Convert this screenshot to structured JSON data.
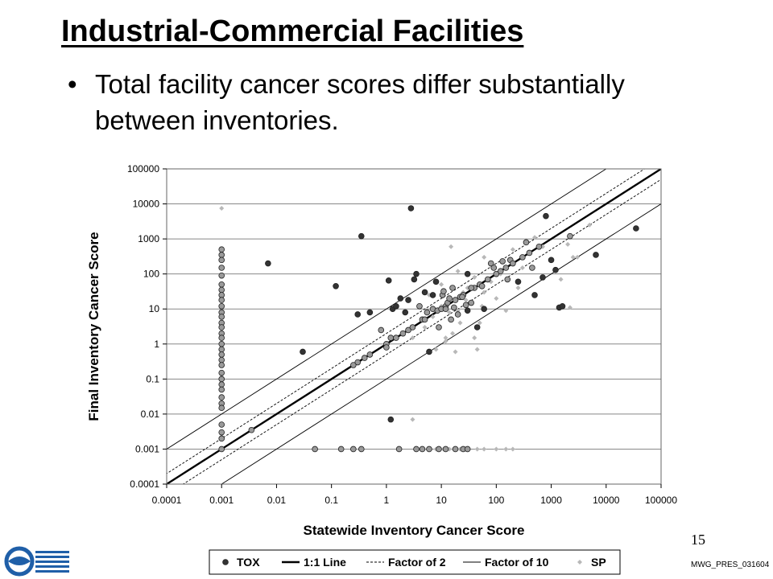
{
  "slide": {
    "title": "Industrial-Commercial Facilities",
    "bullet": "Total facility cancer scores differ substantially between inventories.",
    "page_number": "15",
    "slide_id": "MWG_PRES_031604"
  },
  "chart_data": {
    "type": "scatter",
    "xlabel": "Statewide Inventory Cancer Score",
    "ylabel": "Final Inventory Cancer Score",
    "x_scale": "log",
    "y_scale": "log",
    "xlim": [
      0.0001,
      100000
    ],
    "ylim": [
      0.0001,
      100000
    ],
    "x_ticks": [
      "0.0001",
      "0.001",
      "0.01",
      "0.1",
      "1",
      "10",
      "100",
      "1000",
      "10000",
      "100000"
    ],
    "y_ticks": [
      "100000",
      "10000",
      "1000",
      "100",
      "10",
      "1",
      "0.1",
      "0.01",
      "0.001",
      "0.0001"
    ],
    "grid": "horizontal",
    "legend_position": "bottom",
    "legend": [
      {
        "label": "TOX",
        "marker": "dark-dot"
      },
      {
        "label": "1:1 Line",
        "marker": "thick-line"
      },
      {
        "label": "Factor of 2",
        "marker": "dashed-line"
      },
      {
        "label": "Factor of 10",
        "marker": "thin-line"
      },
      {
        "label": "SP",
        "marker": "light-diamond"
      }
    ],
    "colors": {
      "tox": "#333333",
      "tox_overlap": "#9a9a9a",
      "sp": "#b8b8b8",
      "lines": "#000000",
      "grid": "#888888"
    },
    "reference_lines": [
      {
        "name": "1:1 Line",
        "factor": 1
      },
      {
        "name": "Factor of 2",
        "factor": 2
      },
      {
        "name": "Factor of 2",
        "factor": 0.5
      },
      {
        "name": "Factor of 10",
        "factor": 10
      },
      {
        "name": "Factor of 10",
        "factor": 0.1
      }
    ],
    "series": [
      {
        "name": "TOX",
        "points": [
          [
            0.001,
            500
          ],
          [
            0.001,
            350
          ],
          [
            0.001,
            250
          ],
          [
            0.001,
            150
          ],
          [
            0.001,
            90
          ],
          [
            0.001,
            50
          ],
          [
            0.001,
            35
          ],
          [
            0.001,
            25
          ],
          [
            0.001,
            18
          ],
          [
            0.001,
            12
          ],
          [
            0.001,
            8
          ],
          [
            0.001,
            6
          ],
          [
            0.001,
            4
          ],
          [
            0.001,
            3
          ],
          [
            0.001,
            2
          ],
          [
            0.001,
            1.5
          ],
          [
            0.001,
            1
          ],
          [
            0.001,
            0.7
          ],
          [
            0.001,
            0.5
          ],
          [
            0.001,
            0.35
          ],
          [
            0.001,
            0.25
          ],
          [
            0.001,
            0.15
          ],
          [
            0.001,
            0.1
          ],
          [
            0.001,
            0.07
          ],
          [
            0.001,
            0.05
          ],
          [
            0.001,
            0.03
          ],
          [
            0.001,
            0.02
          ],
          [
            0.001,
            0.015
          ],
          [
            0.001,
            0.005
          ],
          [
            0.001,
            0.003
          ],
          [
            0.001,
            0.002
          ],
          [
            0.001,
            0.001
          ],
          [
            0.0035,
            0.0035
          ],
          [
            0.007,
            200
          ],
          [
            0.03,
            0.6
          ],
          [
            0.12,
            45
          ],
          [
            0.35,
            1200
          ],
          [
            2.8,
            7500
          ],
          [
            0.3,
            0.3
          ],
          [
            0.25,
            0.25
          ],
          [
            0.5,
            0.5
          ],
          [
            0.4,
            0.4
          ],
          [
            0.3,
            7
          ],
          [
            0.5,
            8
          ],
          [
            0.8,
            2.5
          ],
          [
            1,
            1
          ],
          [
            1.2,
            1.5
          ],
          [
            1.5,
            1.5
          ],
          [
            2,
            2
          ],
          [
            1.1,
            65
          ],
          [
            1.3,
            10
          ],
          [
            1.5,
            12
          ],
          [
            1.8,
            20
          ],
          [
            2.2,
            8
          ],
          [
            2.5,
            2.5
          ],
          [
            3,
            3
          ],
          [
            3.2,
            70
          ],
          [
            3.5,
            100
          ],
          [
            4.5,
            5
          ],
          [
            5,
            5
          ],
          [
            5.5,
            8
          ],
          [
            6,
            0.6
          ],
          [
            7,
            10
          ],
          [
            8,
            60
          ],
          [
            8.5,
            9
          ],
          [
            10,
            10
          ],
          [
            10.5,
            25
          ],
          [
            12,
            12
          ],
          [
            13,
            15
          ],
          [
            15,
            5
          ],
          [
            16,
            40
          ],
          [
            18,
            18
          ],
          [
            20,
            7
          ],
          [
            22,
            22
          ],
          [
            25,
            25
          ],
          [
            28,
            13
          ],
          [
            30,
            100
          ],
          [
            35,
            15
          ],
          [
            40,
            40
          ],
          [
            45,
            3
          ],
          [
            50,
            50
          ],
          [
            60,
            10
          ],
          [
            70,
            70
          ],
          [
            80,
            200
          ],
          [
            100,
            100
          ],
          [
            120,
            120
          ],
          [
            150,
            150
          ],
          [
            180,
            250
          ],
          [
            200,
            200
          ],
          [
            250,
            60
          ],
          [
            300,
            300
          ],
          [
            400,
            400
          ],
          [
            500,
            25
          ],
          [
            600,
            600
          ],
          [
            700,
            80
          ],
          [
            800,
            4500
          ],
          [
            1000,
            250
          ],
          [
            1200,
            130
          ],
          [
            1400,
            11
          ],
          [
            1600,
            12
          ],
          [
            2200,
            1200
          ],
          [
            6500,
            350
          ],
          [
            35000,
            2000
          ],
          [
            1.2,
            0.007
          ],
          [
            0.05,
            0.001
          ],
          [
            0.15,
            0.001
          ],
          [
            0.25,
            0.001
          ],
          [
            0.35,
            0.001
          ],
          [
            1.7,
            0.001
          ],
          [
            3.5,
            0.001
          ],
          [
            4.5,
            0.001
          ],
          [
            6,
            0.001
          ],
          [
            9,
            0.001
          ],
          [
            12,
            0.001
          ],
          [
            18,
            0.001
          ],
          [
            25,
            0.001
          ],
          [
            30,
            0.001
          ],
          [
            1,
            0.8
          ],
          [
            2.5,
            18
          ],
          [
            5,
            30
          ],
          [
            11,
            32
          ],
          [
            14,
            20
          ],
          [
            17,
            11
          ],
          [
            24,
            22
          ],
          [
            30,
            9
          ],
          [
            35,
            40
          ],
          [
            55,
            45
          ],
          [
            90,
            150
          ],
          [
            130,
            230
          ],
          [
            160,
            70
          ],
          [
            350,
            800
          ],
          [
            450,
            150
          ],
          [
            12,
            10
          ],
          [
            7,
            25
          ],
          [
            4,
            12
          ],
          [
            9,
            3
          ]
        ]
      },
      {
        "name": "SP",
        "points": [
          [
            0.001,
            7500
          ],
          [
            3,
            0.007
          ],
          [
            20,
            9
          ],
          [
            25,
            30
          ],
          [
            15,
            600
          ],
          [
            18,
            0.6
          ],
          [
            10,
            12
          ],
          [
            30,
            40
          ],
          [
            8,
            0.7
          ],
          [
            12,
            1.5
          ],
          [
            30,
            100
          ],
          [
            40,
            1.5
          ],
          [
            50,
            4
          ],
          [
            60,
            300
          ],
          [
            80,
            60
          ],
          [
            100,
            20
          ],
          [
            150,
            9
          ],
          [
            200,
            500
          ],
          [
            300,
            150
          ],
          [
            500,
            1100
          ],
          [
            700,
            600
          ],
          [
            1000,
            250
          ],
          [
            1500,
            70
          ],
          [
            2000,
            700
          ],
          [
            3000,
            300
          ],
          [
            5000,
            2500
          ],
          [
            20,
            120
          ],
          [
            40,
            80
          ],
          [
            60,
            30
          ],
          [
            80,
            200
          ],
          [
            120,
            100
          ],
          [
            250,
            40
          ],
          [
            6,
            25
          ],
          [
            10,
            50
          ],
          [
            14,
            8
          ],
          [
            22,
            4
          ],
          [
            35,
            15
          ],
          [
            45,
            0.7
          ],
          [
            60,
            0.001
          ],
          [
            100,
            0.001
          ],
          [
            150,
            0.001
          ],
          [
            200,
            0.001
          ],
          [
            8,
            0.001
          ],
          [
            11,
            0.001
          ],
          [
            14,
            0.001
          ],
          [
            22,
            0.001
          ],
          [
            30,
            0.001
          ],
          [
            45,
            0.001
          ],
          [
            3,
            1.5
          ],
          [
            5,
            3
          ],
          [
            7,
            6
          ],
          [
            12,
            1.2
          ],
          [
            16,
            2
          ],
          [
            28,
            18
          ],
          [
            55,
            12
          ],
          [
            2200,
            11
          ],
          [
            2500,
            300
          ]
        ]
      }
    ]
  }
}
